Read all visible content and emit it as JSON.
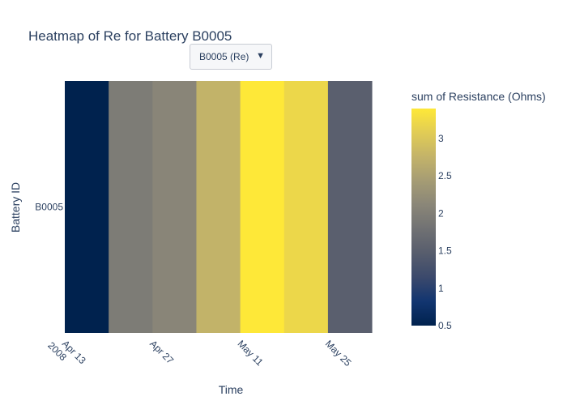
{
  "dropdown": {
    "selected": "B0005 (Re)",
    "arrow_icon": "caret-down-icon"
  },
  "chart_data": {
    "type": "heatmap",
    "title": "Heatmap of Re for Battery B0005",
    "xlabel": "Time",
    "ylabel": "Battery ID",
    "colorbar_title": "sum of Resistance (Ohms)",
    "y_categories": [
      "B0005"
    ],
    "x_tick_labels": [
      {
        "date": "2008-04-13",
        "line1": "Apr 13",
        "line2": "2008"
      },
      {
        "date": "2008-04-27",
        "line1": "Apr 27",
        "line2": ""
      },
      {
        "date": "2008-05-11",
        "line1": "May 11",
        "line2": ""
      },
      {
        "date": "2008-05-25",
        "line1": "May 25",
        "line2": ""
      }
    ],
    "x_range": [
      "2008-04-13",
      "2008-06-05"
    ],
    "cells": [
      {
        "x_start": "2008-04-13",
        "x_end": "2008-04-20",
        "value": 0.5
      },
      {
        "x_start": "2008-04-20",
        "x_end": "2008-04-27",
        "value": 1.95
      },
      {
        "x_start": "2008-04-27",
        "x_end": "2008-05-04",
        "value": 2.1
      },
      {
        "x_start": "2008-05-04",
        "x_end": "2008-05-11",
        "value": 2.75
      },
      {
        "x_start": "2008-05-11",
        "x_end": "2008-05-18",
        "value": 3.4
      },
      {
        "x_start": "2008-05-18",
        "x_end": "2008-05-25",
        "value": 3.2
      },
      {
        "x_start": "2008-05-25",
        "x_end": "2008-06-01",
        "value": 1.5
      }
    ],
    "colorscale": [
      "#00224e",
      "#123570",
      "#3b496c",
      "#575d6d",
      "#707173",
      "#8a8678",
      "#a59c74",
      "#c3b369",
      "#e1cc55",
      "#fee838"
    ],
    "colorbar_range": [
      0.5,
      3.4
    ],
    "colorbar_ticks": [
      0.5,
      1,
      1.5,
      2,
      2.5,
      3
    ],
    "colorbar_tick_labels": [
      "0.5",
      "1",
      "1.5",
      "2",
      "2.5",
      "3"
    ]
  }
}
